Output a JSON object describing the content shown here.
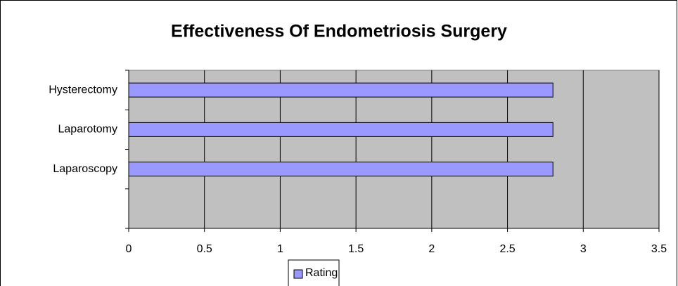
{
  "chart_data": {
    "type": "bar",
    "orientation": "horizontal",
    "title": "Effectiveness Of Endometriosis Surgery",
    "categories": [
      "Hysterectomy",
      "Laparotomy",
      "Laparoscopy",
      null
    ],
    "series": [
      {
        "name": "Rating",
        "color": "#9999ff",
        "values": [
          2.8,
          2.8,
          2.8,
          null
        ]
      }
    ],
    "xlim": [
      0,
      3.5
    ],
    "xticks": [
      0,
      0.5,
      1,
      1.5,
      2,
      2.5,
      3,
      3.5
    ],
    "grid": true,
    "legend": "bottom"
  }
}
